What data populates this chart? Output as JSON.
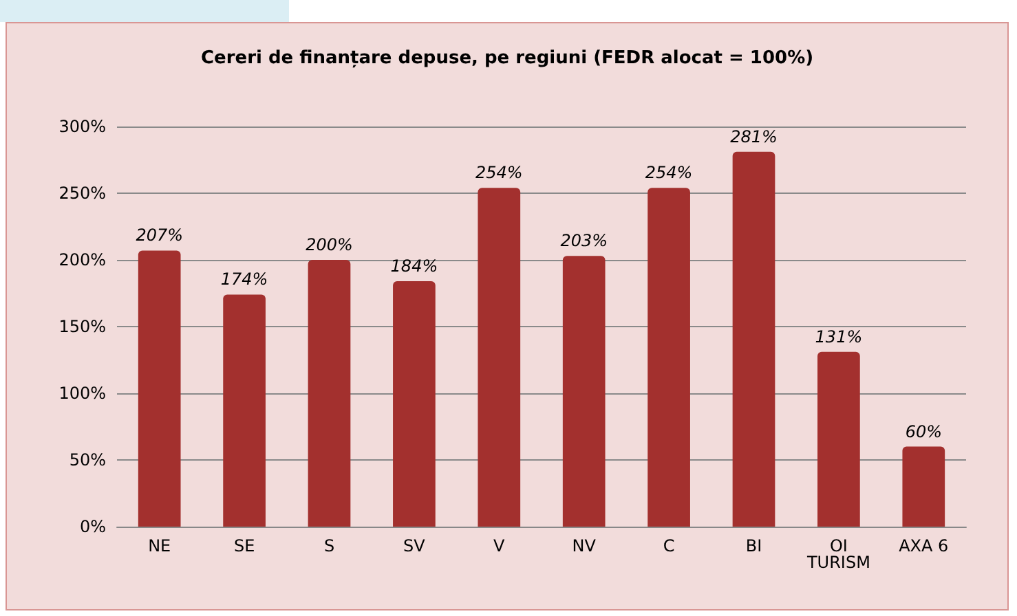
{
  "chart_data": {
    "type": "bar",
    "title": "Cereri de finanțare depuse, pe regiuni (FEDR alocat = 100%)",
    "categories": [
      "NE",
      "SE",
      "S",
      "SV",
      "V",
      "NV",
      "C",
      "BI",
      "OI TURISM",
      "AXA 6"
    ],
    "values": [
      207,
      174,
      200,
      184,
      254,
      203,
      254,
      281,
      131,
      60
    ],
    "value_labels": [
      "207%",
      "174%",
      "200%",
      "184%",
      "254%",
      "203%",
      "254%",
      "281%",
      "131%",
      "60%"
    ],
    "color": "#a3302e",
    "ylim": [
      0,
      300
    ],
    "yticks": [
      {
        "value": 0,
        "label": "0%"
      },
      {
        "value": 50,
        "label": "50%"
      },
      {
        "value": 100,
        "label": "100%"
      },
      {
        "value": 150,
        "label": "150%"
      },
      {
        "value": 200,
        "label": "200%"
      },
      {
        "value": 250,
        "label": "250%"
      },
      {
        "value": 300,
        "label": "300%"
      }
    ],
    "grid": true
  }
}
